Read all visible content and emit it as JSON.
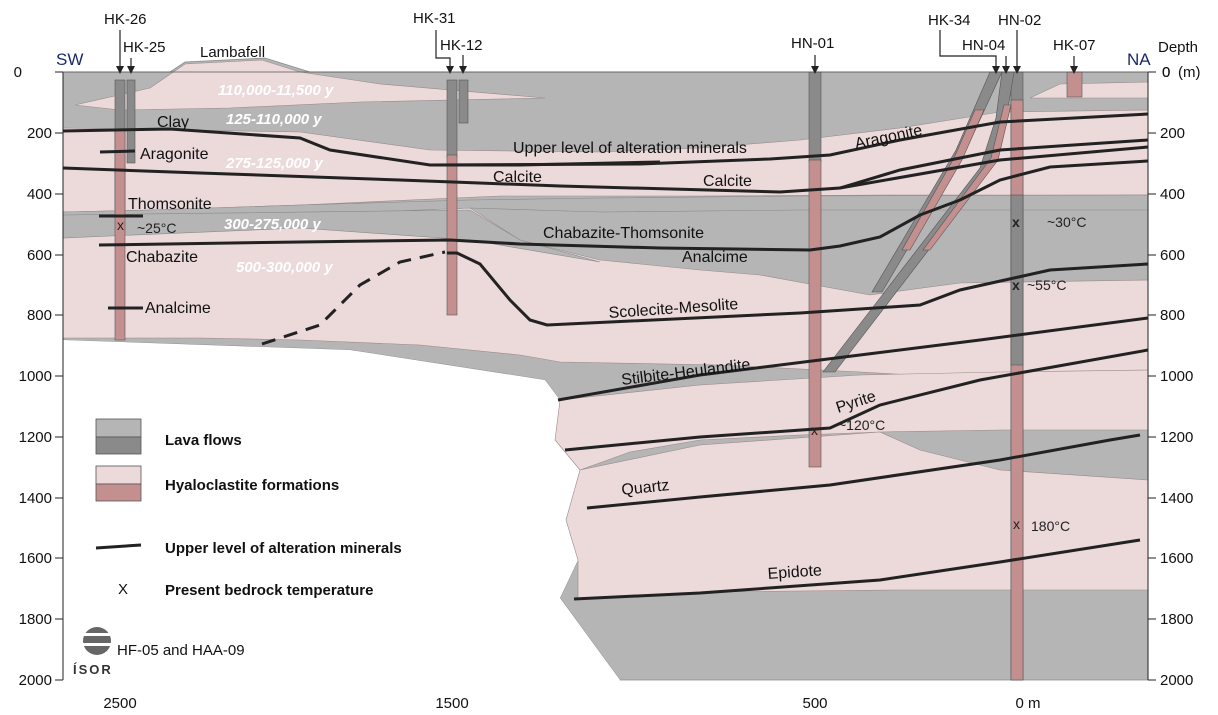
{
  "header": {
    "left_direction": "SW",
    "right_direction": "NA",
    "depth_label": "Depth",
    "depth_unit": "(m)",
    "hill_name": "Lambafell"
  },
  "left_axis": {
    "ticks": [
      "0",
      "200",
      "400",
      "600",
      "800",
      "1000",
      "1200",
      "1400",
      "1600",
      "1800",
      "2000"
    ]
  },
  "right_axis": {
    "ticks": [
      "0",
      "200",
      "400",
      "600",
      "800",
      "1000",
      "1200",
      "1400",
      "1600",
      "1800",
      "2000"
    ]
  },
  "x_axis": {
    "ticks": [
      "2500",
      "1500",
      "500",
      "0 m"
    ]
  },
  "wells": [
    "HK-26",
    "HK-25",
    "HK-31",
    "HK-12",
    "HN-01",
    "HK-34",
    "HN-04",
    "HN-02",
    "HK-07"
  ],
  "ages": [
    "110,000-11,500 y",
    "125-110,000 y",
    "275-125,000 y",
    "300-275,000 y",
    "500-300,000 y"
  ],
  "minerals": {
    "clay": "Clay",
    "aragonite_left": "Aragonite",
    "upper_level": "Upper level of alteration minerals",
    "aragonite_right": "Aragonite",
    "calcite_1": "Calcite",
    "calcite_2": "Calcite",
    "thomsonite": "Thomsonite",
    "chabazite_thomsonite": "Chabazite-Thomsonite",
    "analcime_mid": "Analcime",
    "chabazite": "Chabazite",
    "analcime_left": "Analcime",
    "scolecite": "Scolecite-Mesolite",
    "stilbite": "Stilbite-Heulandite",
    "pyrite": "Pyrite",
    "quartz": "Quartz",
    "epidote": "Epidote"
  },
  "temperatures": {
    "t25": "~25°C",
    "t30": "~30°C",
    "t55": "~55°C",
    "t120": "~120°C",
    "t180": "180°C",
    "marker": "x"
  },
  "legend": {
    "lava": "Lava flows",
    "hyalo": "Hyaloclastite formations",
    "upper": "Upper level of alteration minerals",
    "temp_symbol": "X",
    "temp": "Present bedrock temperature"
  },
  "footer": {
    "logo_text": "ÍSOR",
    "credit": "HF-05 and HAA-09"
  },
  "colors": {
    "lava": "#b5b5b5",
    "lava_dark": "#8a8a8a",
    "hyalo": "#ecd9d9",
    "hyalo_dark": "#c48f8f",
    "line": "#222222",
    "direction": "#1a2a66"
  }
}
